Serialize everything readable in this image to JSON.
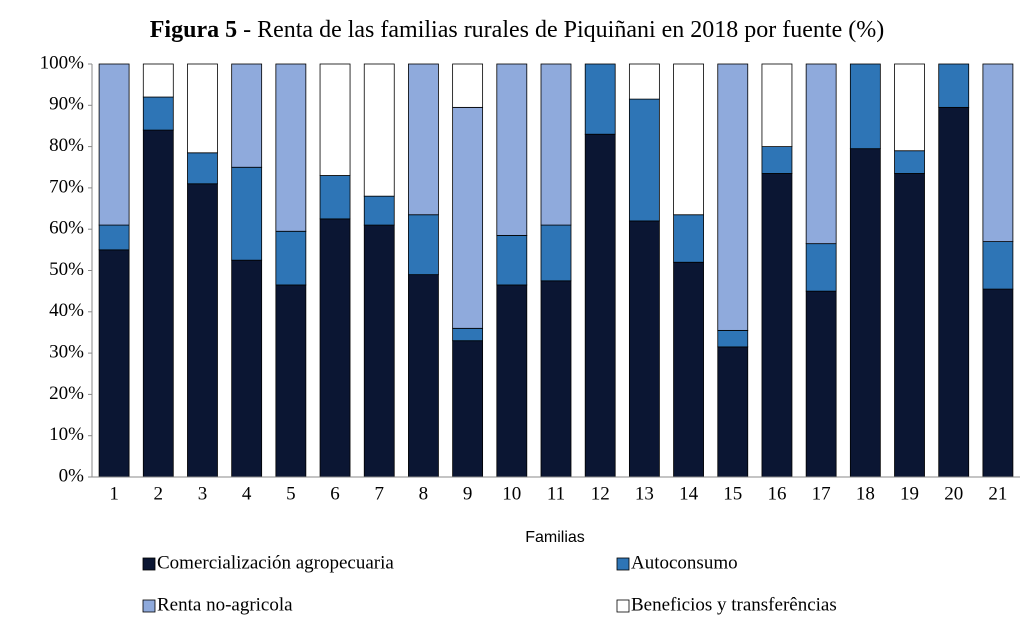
{
  "chart_data": {
    "type": "stacked_bar",
    "title_prefix": "Figura 5",
    "title": "- Renta de las familias rurales de Piquiñani en 2018 por fuente (%)",
    "x_label": "Familias",
    "categories": [
      "1",
      "2",
      "3",
      "4",
      "5",
      "6",
      "7",
      "8",
      "9",
      "10",
      "11",
      "12",
      "13",
      "14",
      "15",
      "16",
      "17",
      "18",
      "19",
      "20",
      "21"
    ],
    "series": [
      {
        "name": "Comercialización agropecuaria",
        "color": "#0b1633",
        "values": [
          55,
          84,
          71,
          52.5,
          46.5,
          62.5,
          61,
          49,
          33,
          46.5,
          47.5,
          83,
          62,
          52,
          31.5,
          73.5,
          45,
          79.5,
          73.5,
          89.5,
          45.5
        ]
      },
      {
        "name": "Autoconsumo",
        "color": "#2e75b6",
        "values": [
          6,
          8,
          7.5,
          22.5,
          13,
          10.5,
          7,
          14.5,
          3,
          12,
          13.5,
          17,
          29.5,
          11.5,
          4,
          6.5,
          11.5,
          20.5,
          5.5,
          10.5,
          11.5
        ]
      },
      {
        "name": "Renta no-agricola",
        "color": "#8faadc",
        "values": [
          39,
          0,
          0,
          25,
          40.5,
          0,
          0,
          36.5,
          53.5,
          41.5,
          39,
          0,
          0,
          0,
          64.5,
          0,
          43.5,
          0,
          0,
          0,
          43
        ]
      },
      {
        "name": "Beneficios y transferências",
        "color": "#ffffff",
        "values": [
          0,
          8,
          21.5,
          0,
          0,
          27,
          32,
          0,
          10.5,
          0,
          0,
          0,
          8.5,
          36.5,
          0,
          20,
          0,
          0,
          21,
          0,
          0
        ]
      }
    ],
    "ylim": [
      0,
      100
    ],
    "yticks": [
      {
        "value": 0,
        "label": "0%"
      },
      {
        "value": 10,
        "label": "10%"
      },
      {
        "value": 20,
        "label": "20%"
      },
      {
        "value": 30,
        "label": "30%"
      },
      {
        "value": 40,
        "label": "40%"
      },
      {
        "value": 50,
        "label": "50%"
      },
      {
        "value": 60,
        "label": "60%"
      },
      {
        "value": 70,
        "label": "70%"
      },
      {
        "value": 80,
        "label": "80%"
      },
      {
        "value": 90,
        "label": "90%"
      },
      {
        "value": 100,
        "label": "100%"
      }
    ],
    "grid": false
  }
}
